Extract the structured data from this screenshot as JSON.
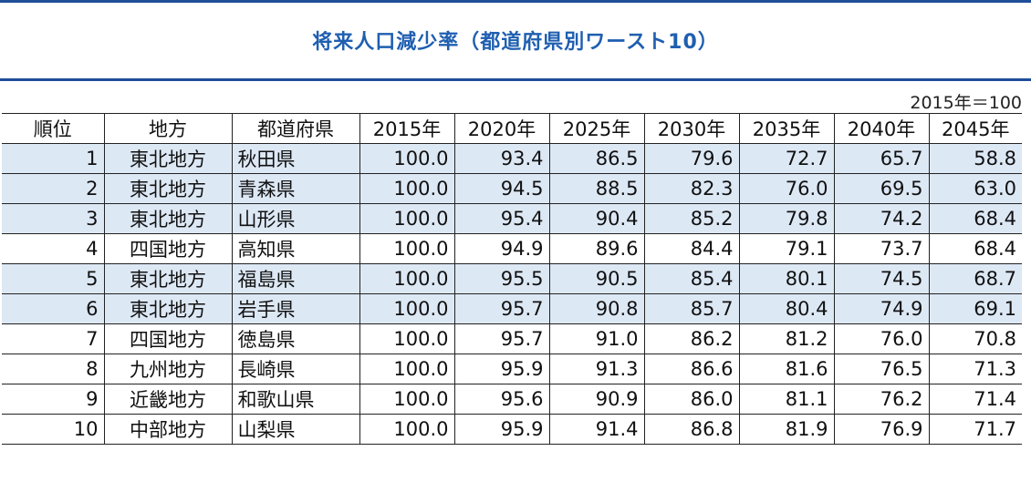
{
  "title": "将来人口減少率（都道府県別ワースト10）",
  "note": "2015年＝100",
  "chart_data": {
    "type": "table",
    "headers": [
      "順位",
      "地方",
      "都道府県",
      "2015年",
      "2020年",
      "2025年",
      "2030年",
      "2035年",
      "2040年",
      "2045年"
    ],
    "rows": [
      {
        "rank": "1",
        "region": "東北地方",
        "pref": "秋田県",
        "values": [
          "100.0",
          "93.4",
          "86.5",
          "79.6",
          "72.7",
          "65.7",
          "58.8"
        ],
        "highlight": true
      },
      {
        "rank": "2",
        "region": "東北地方",
        "pref": "青森県",
        "values": [
          "100.0",
          "94.5",
          "88.5",
          "82.3",
          "76.0",
          "69.5",
          "63.0"
        ],
        "highlight": true
      },
      {
        "rank": "3",
        "region": "東北地方",
        "pref": "山形県",
        "values": [
          "100.0",
          "95.4",
          "90.4",
          "85.2",
          "79.8",
          "74.2",
          "68.4"
        ],
        "highlight": true
      },
      {
        "rank": "4",
        "region": "四国地方",
        "pref": "高知県",
        "values": [
          "100.0",
          "94.9",
          "89.6",
          "84.4",
          "79.1",
          "73.7",
          "68.4"
        ],
        "highlight": false
      },
      {
        "rank": "5",
        "region": "東北地方",
        "pref": "福島県",
        "values": [
          "100.0",
          "95.5",
          "90.5",
          "85.4",
          "80.1",
          "74.5",
          "68.7"
        ],
        "highlight": true
      },
      {
        "rank": "6",
        "region": "東北地方",
        "pref": "岩手県",
        "values": [
          "100.0",
          "95.7",
          "90.8",
          "85.7",
          "80.4",
          "74.9",
          "69.1"
        ],
        "highlight": true
      },
      {
        "rank": "7",
        "region": "四国地方",
        "pref": "徳島県",
        "values": [
          "100.0",
          "95.7",
          "91.0",
          "86.2",
          "81.2",
          "76.0",
          "70.8"
        ],
        "highlight": false
      },
      {
        "rank": "8",
        "region": "九州地方",
        "pref": "長崎県",
        "values": [
          "100.0",
          "95.9",
          "91.3",
          "86.6",
          "81.6",
          "76.5",
          "71.3"
        ],
        "highlight": false
      },
      {
        "rank": "9",
        "region": "近畿地方",
        "pref": "和歌山県",
        "values": [
          "100.0",
          "95.6",
          "90.9",
          "86.0",
          "81.1",
          "76.2",
          "71.4"
        ],
        "highlight": false
      },
      {
        "rank": "10",
        "region": "中部地方",
        "pref": "山梨県",
        "values": [
          "100.0",
          "95.9",
          "91.4",
          "86.8",
          "81.9",
          "76.9",
          "71.7"
        ],
        "highlight": false
      }
    ],
    "highlight_color": "#dde8f5"
  },
  "colors": {
    "title": "#1f5fb0",
    "rule": "#1f4e99"
  }
}
